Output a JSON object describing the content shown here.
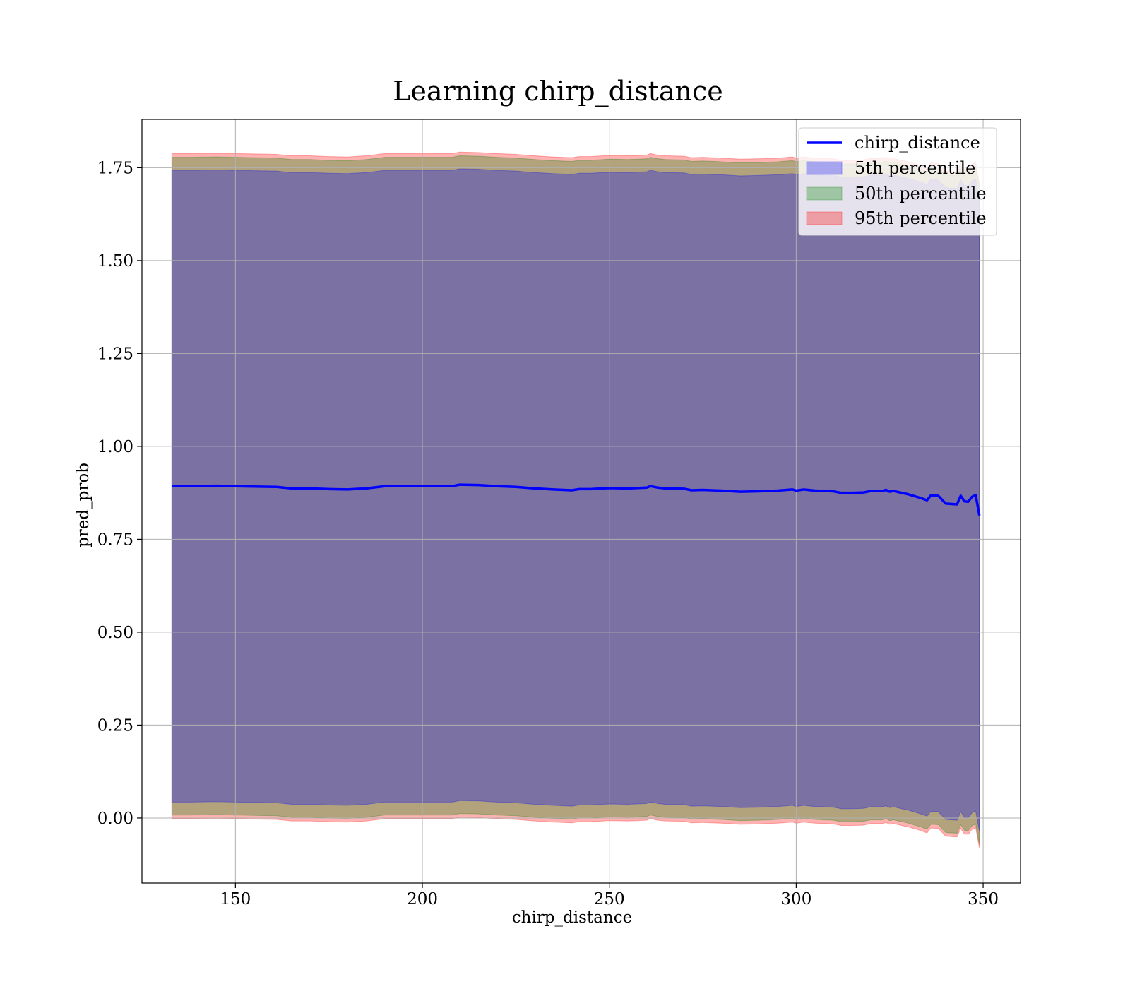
{
  "chart_data": {
    "type": "area",
    "title": "Learning chirp_distance",
    "xlabel": "chirp_distance",
    "ylabel": "pred_prob",
    "xlim": [
      125,
      360
    ],
    "ylim": [
      -0.175,
      1.88
    ],
    "xticks": [
      150,
      200,
      250,
      300,
      350
    ],
    "yticks": [
      0.0,
      0.25,
      0.5,
      0.75,
      1.0,
      1.25,
      1.5,
      1.75
    ],
    "ytick_labels": [
      "0.00",
      "0.25",
      "0.50",
      "0.75",
      "1.00",
      "1.25",
      "1.50",
      "1.75"
    ],
    "grid": true,
    "legend_position": "top-right",
    "colors": {
      "line": "#0000ff",
      "p5": "#0000ff",
      "p50": "#008000",
      "p95": "#ff0000",
      "frame": "#000000"
    },
    "x": [
      133,
      138,
      145,
      150,
      155,
      161,
      165,
      170,
      175,
      180,
      185,
      190,
      195,
      200,
      205,
      208,
      210,
      215,
      220,
      225,
      230,
      235,
      240,
      242,
      245,
      250,
      255,
      260,
      261,
      263,
      265,
      270,
      272,
      275,
      280,
      285,
      290,
      295,
      299,
      300,
      302,
      305,
      310,
      312,
      315,
      318,
      320,
      323,
      324,
      325,
      326,
      330,
      333,
      335,
      336,
      338,
      340,
      343,
      344,
      345,
      346,
      347,
      348,
      349
    ],
    "series": [
      {
        "name": "chirp_distance",
        "kind": "line",
        "values": [
          0.893,
          0.893,
          0.894,
          0.893,
          0.892,
          0.891,
          0.887,
          0.887,
          0.885,
          0.884,
          0.887,
          0.893,
          0.893,
          0.893,
          0.893,
          0.893,
          0.897,
          0.896,
          0.893,
          0.891,
          0.887,
          0.884,
          0.882,
          0.885,
          0.885,
          0.888,
          0.887,
          0.889,
          0.893,
          0.889,
          0.887,
          0.886,
          0.882,
          0.883,
          0.881,
          0.878,
          0.879,
          0.881,
          0.884,
          0.881,
          0.884,
          0.881,
          0.879,
          0.875,
          0.875,
          0.876,
          0.88,
          0.88,
          0.883,
          0.878,
          0.88,
          0.871,
          0.862,
          0.855,
          0.868,
          0.867,
          0.846,
          0.844,
          0.867,
          0.852,
          0.851,
          0.864,
          0.869,
          0.814
        ]
      },
      {
        "name": "5th percentile",
        "kind": "band",
        "lower_offset": -0.85,
        "upper_offset": 0.85
      },
      {
        "name": "50th percentile",
        "kind": "band",
        "lower_offset": -0.885,
        "upper_offset": 0.885
      },
      {
        "name": "95th percentile",
        "kind": "band",
        "lower_offset": -0.895,
        "upper_offset": 0.895
      }
    ]
  }
}
